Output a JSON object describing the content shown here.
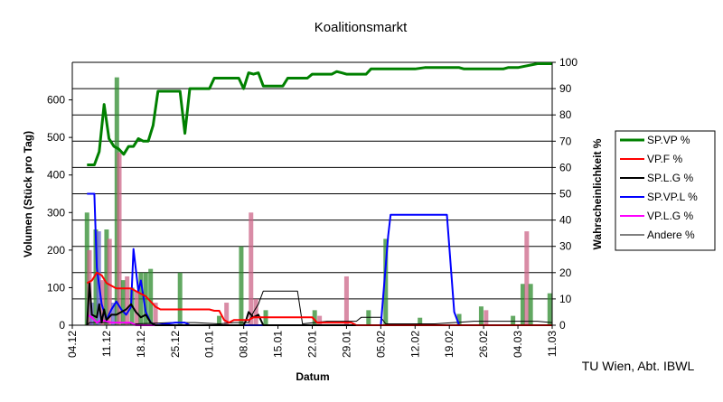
{
  "chart_data": {
    "type": "line",
    "title": "Koalitionsmarkt",
    "xlabel": "Datum",
    "ylabel_left": "Volumen (Stück pro Tag)",
    "ylabel_right": "Wahrscheinlichkeit %",
    "credit": "TU Wien, Abt. IBWL",
    "y_left": {
      "min": 0,
      "max": 700,
      "ticks": [
        0,
        100,
        200,
        300,
        400,
        500,
        600
      ]
    },
    "y_right": {
      "min": 0,
      "max": 100,
      "ticks": [
        0,
        10,
        20,
        30,
        40,
        50,
        60,
        70,
        80,
        90,
        100
      ]
    },
    "x_range": [
      0,
      98
    ],
    "x_ticks": [
      {
        "d": 0,
        "label": "04.12"
      },
      {
        "d": 7,
        "label": "11.12"
      },
      {
        "d": 14,
        "label": "18.12"
      },
      {
        "d": 21,
        "label": "25.12"
      },
      {
        "d": 28,
        "label": "01.01"
      },
      {
        "d": 35,
        "label": "08.01"
      },
      {
        "d": 42,
        "label": "15.01"
      },
      {
        "d": 49,
        "label": "22.01"
      },
      {
        "d": 56,
        "label": "29.01"
      },
      {
        "d": 63,
        "label": "05.02"
      },
      {
        "d": 70,
        "label": "12.02"
      },
      {
        "d": 77,
        "label": "19.02"
      },
      {
        "d": 84,
        "label": "26.02"
      },
      {
        "d": 91,
        "label": "04.03"
      },
      {
        "d": 98,
        "label": "11.03"
      }
    ],
    "grid": true,
    "legend_position": "right",
    "series": [
      {
        "name": "SP.VP %",
        "color": "#008000",
        "width": 3,
        "points": [
          [
            3,
            61
          ],
          [
            4.5,
            61
          ],
          [
            5.5,
            66
          ],
          [
            6.5,
            84
          ],
          [
            7.5,
            71
          ],
          [
            8.5,
            68
          ],
          [
            9.5,
            67
          ],
          [
            10.5,
            65
          ],
          [
            11.5,
            68
          ],
          [
            12.5,
            68
          ],
          [
            13.5,
            71
          ],
          [
            14.5,
            70
          ],
          [
            15.5,
            70
          ],
          [
            16.5,
            76
          ],
          [
            17.5,
            89
          ],
          [
            22,
            89
          ],
          [
            23,
            73
          ],
          [
            24,
            90
          ],
          [
            28,
            90
          ],
          [
            29,
            94
          ],
          [
            34,
            94
          ],
          [
            35,
            90
          ],
          [
            36,
            96
          ],
          [
            37,
            95.5
          ],
          [
            38,
            96
          ],
          [
            39,
            91
          ],
          [
            43,
            91
          ],
          [
            44,
            94
          ],
          [
            48,
            94
          ],
          [
            49,
            95.5
          ],
          [
            53,
            95.5
          ],
          [
            54,
            96.5
          ],
          [
            55,
            96
          ],
          [
            56,
            95.5
          ],
          [
            60,
            95.5
          ],
          [
            61,
            97.5
          ],
          [
            70,
            97.5
          ],
          [
            72,
            98
          ],
          [
            79,
            98
          ],
          [
            80,
            97.5
          ],
          [
            88,
            97.5
          ],
          [
            89,
            98
          ],
          [
            91,
            98
          ],
          [
            95,
            99.5
          ],
          [
            98,
            99.5
          ]
        ]
      },
      {
        "name": "VP.F %",
        "color": "#ff0000",
        "width": 2,
        "points": [
          [
            3,
            16
          ],
          [
            4,
            17
          ],
          [
            5,
            20
          ],
          [
            6,
            19
          ],
          [
            7,
            16
          ],
          [
            9,
            14
          ],
          [
            12,
            14
          ],
          [
            13,
            13
          ],
          [
            15,
            11
          ],
          [
            17,
            7
          ],
          [
            18,
            6
          ],
          [
            28,
            6
          ],
          [
            29,
            5.5
          ],
          [
            30,
            5.5
          ],
          [
            31,
            2
          ],
          [
            32,
            1
          ],
          [
            33,
            2
          ],
          [
            36,
            2
          ],
          [
            37,
            3
          ],
          [
            40,
            3
          ],
          [
            49,
            3
          ],
          [
            50,
            1
          ],
          [
            57,
            1
          ],
          [
            58,
            0
          ],
          [
            98,
            0
          ]
        ]
      },
      {
        "name": "SP.L.G %",
        "color": "#000000",
        "width": 2,
        "points": [
          [
            3,
            0
          ],
          [
            3.5,
            16
          ],
          [
            4,
            4
          ],
          [
            5,
            3
          ],
          [
            5.5,
            8
          ],
          [
            6,
            1
          ],
          [
            6.5,
            6
          ],
          [
            7,
            2
          ],
          [
            7.5,
            3
          ],
          [
            8,
            4
          ],
          [
            9,
            4
          ],
          [
            10,
            5
          ],
          [
            11,
            6
          ],
          [
            12,
            8
          ],
          [
            13,
            5
          ],
          [
            14,
            3
          ],
          [
            15,
            4
          ],
          [
            16,
            1
          ],
          [
            17,
            0
          ],
          [
            35,
            0
          ],
          [
            35.5,
            2
          ],
          [
            36,
            5
          ],
          [
            37,
            3
          ],
          [
            38,
            4
          ],
          [
            39,
            0
          ],
          [
            98,
            0
          ]
        ]
      },
      {
        "name": "SP.VP.L %",
        "color": "#0000ff",
        "width": 2,
        "points": [
          [
            3,
            50
          ],
          [
            4.5,
            50
          ],
          [
            5,
            22
          ],
          [
            6,
            8
          ],
          [
            7,
            2
          ],
          [
            8,
            6
          ],
          [
            9,
            9
          ],
          [
            10,
            6
          ],
          [
            11,
            4
          ],
          [
            12,
            7
          ],
          [
            12.5,
            29
          ],
          [
            13.5,
            13
          ],
          [
            14,
            17
          ],
          [
            15,
            5
          ],
          [
            16,
            1
          ],
          [
            17,
            0
          ],
          [
            21,
            1
          ],
          [
            23,
            1
          ],
          [
            24,
            0
          ],
          [
            63,
            0
          ],
          [
            64.5,
            34
          ],
          [
            65,
            42
          ],
          [
            76.5,
            42
          ],
          [
            78,
            5
          ],
          [
            79,
            0
          ],
          [
            98,
            0
          ]
        ]
      },
      {
        "name": "VP.L.G %",
        "color": "#ff00ff",
        "width": 2,
        "points": [
          [
            3,
            4
          ],
          [
            4,
            3
          ],
          [
            5,
            1
          ],
          [
            6,
            2
          ],
          [
            8,
            1
          ],
          [
            12,
            1
          ],
          [
            13,
            0
          ],
          [
            98,
            0
          ]
        ]
      },
      {
        "name": "Andere %",
        "color": "#000000",
        "width": 1,
        "points": [
          [
            3,
            0
          ],
          [
            3.5,
            1
          ],
          [
            9,
            1
          ],
          [
            13,
            0.5
          ],
          [
            20,
            1
          ],
          [
            25,
            1
          ],
          [
            30,
            0.5
          ],
          [
            33,
            1
          ],
          [
            36,
            1
          ],
          [
            37,
            5
          ],
          [
            38,
            8
          ],
          [
            39,
            13
          ],
          [
            46,
            13
          ],
          [
            47,
            0.5
          ],
          [
            52,
            1.5
          ],
          [
            58,
            1.5
          ],
          [
            59,
            3
          ],
          [
            63,
            3
          ],
          [
            64,
            0.5
          ],
          [
            74,
            0.5
          ],
          [
            82,
            1.5
          ],
          [
            95,
            1.5
          ],
          [
            98,
            1
          ]
        ]
      }
    ],
    "volume_bars": [
      {
        "d": 3,
        "v": 300,
        "color": "#2e8b2e"
      },
      {
        "d": 3.5,
        "v": 200,
        "color": "#cc6688"
      },
      {
        "d": 4,
        "v": 60,
        "color": "#6666cc"
      },
      {
        "d": 4.8,
        "v": 255,
        "color": "#2e8b2e"
      },
      {
        "d": 5.4,
        "v": 250,
        "color": "#6666cc"
      },
      {
        "d": 6.2,
        "v": 120,
        "color": "#cc6688"
      },
      {
        "d": 7,
        "v": 255,
        "color": "#2e8b2e"
      },
      {
        "d": 7.6,
        "v": 230,
        "color": "#cc6688"
      },
      {
        "d": 8.4,
        "v": 60,
        "color": "#6666cc"
      },
      {
        "d": 9.1,
        "v": 660,
        "color": "#2e8b2e"
      },
      {
        "d": 9.6,
        "v": 460,
        "color": "#cc6688"
      },
      {
        "d": 10.4,
        "v": 120,
        "color": "#2e8b2e"
      },
      {
        "d": 11.2,
        "v": 130,
        "color": "#cc6688"
      },
      {
        "d": 12.2,
        "v": 100,
        "color": "#2e8b2e"
      },
      {
        "d": 13.2,
        "v": 90,
        "color": "#cc6688"
      },
      {
        "d": 14,
        "v": 140,
        "color": "#2e8b2e"
      },
      {
        "d": 15,
        "v": 140,
        "color": "#2e8b2e"
      },
      {
        "d": 16,
        "v": 150,
        "color": "#2e8b2e"
      },
      {
        "d": 17,
        "v": 60,
        "color": "#cc6688"
      },
      {
        "d": 22,
        "v": 140,
        "color": "#2e8b2e"
      },
      {
        "d": 30,
        "v": 25,
        "color": "#2e8b2e"
      },
      {
        "d": 31.5,
        "v": 60,
        "color": "#cc6688"
      },
      {
        "d": 34.5,
        "v": 210,
        "color": "#2e8b2e"
      },
      {
        "d": 36.5,
        "v": 300,
        "color": "#cc6688"
      },
      {
        "d": 37.5,
        "v": 70,
        "color": "#cc6688"
      },
      {
        "d": 39.5,
        "v": 40,
        "color": "#2e8b2e"
      },
      {
        "d": 49.5,
        "v": 40,
        "color": "#2e8b2e"
      },
      {
        "d": 50.5,
        "v": 25,
        "color": "#cc6688"
      },
      {
        "d": 56,
        "v": 130,
        "color": "#cc6688"
      },
      {
        "d": 60.5,
        "v": 40,
        "color": "#2e8b2e"
      },
      {
        "d": 64,
        "v": 230,
        "color": "#2e8b2e"
      },
      {
        "d": 71,
        "v": 20,
        "color": "#2e8b2e"
      },
      {
        "d": 79,
        "v": 30,
        "color": "#2e8b2e"
      },
      {
        "d": 83.5,
        "v": 50,
        "color": "#2e8b2e"
      },
      {
        "d": 84.5,
        "v": 40,
        "color": "#cc6688"
      },
      {
        "d": 90,
        "v": 25,
        "color": "#2e8b2e"
      },
      {
        "d": 92,
        "v": 110,
        "color": "#2e8b2e"
      },
      {
        "d": 92.8,
        "v": 250,
        "color": "#cc6688"
      },
      {
        "d": 93.6,
        "v": 110,
        "color": "#2e8b2e"
      },
      {
        "d": 97.5,
        "v": 85,
        "color": "#2e8b2e"
      }
    ]
  }
}
